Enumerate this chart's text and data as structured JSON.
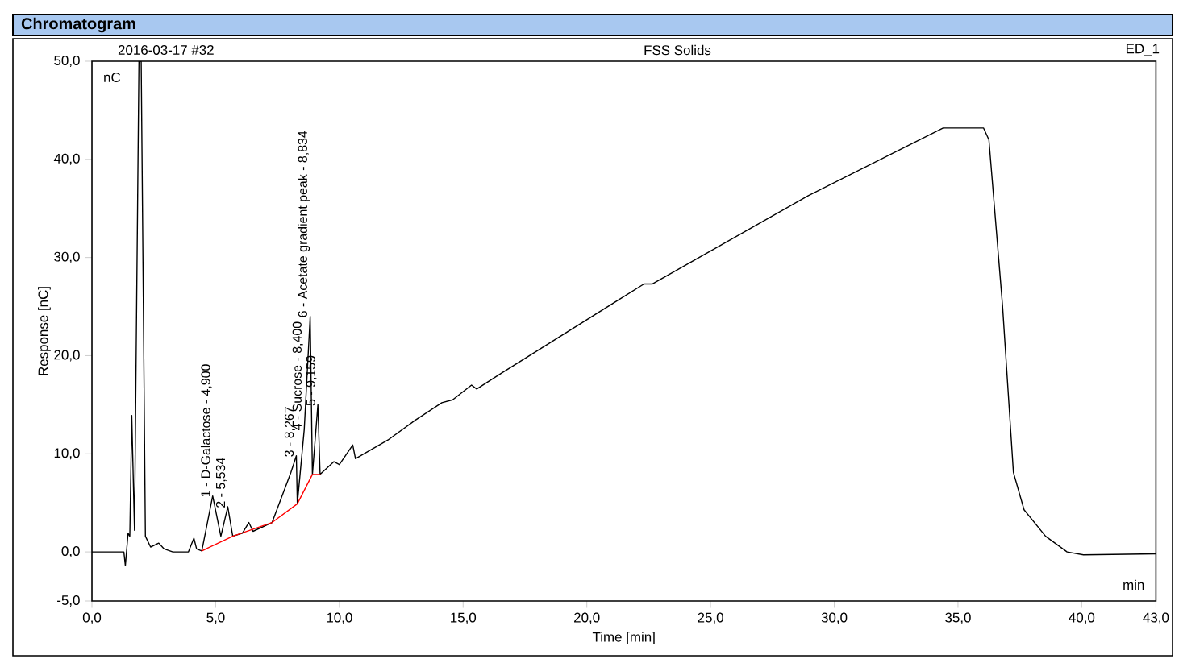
{
  "chart_data": {
    "type": "line",
    "title": "Chromatogram",
    "subtitle": "FSS Solids",
    "xlabel": "Time [min]",
    "ylabel": "Response [nC]",
    "annotations": [
      "2016-03-17 #32",
      "ED_1",
      "nC",
      "min",
      {
        "text": "1 - D-Galactose - 4,900",
        "x": 4.88,
        "y": 5.7
      },
      {
        "text": "2 - 5,534",
        "x": 5.49,
        "y": 4.6
      },
      {
        "text": "3 - 8,267",
        "x": 8.26,
        "y": 9.8
      },
      {
        "text": "4 - Sucrose - 8,400",
        "x": 8.58,
        "y": 12.5
      },
      {
        "text": "6 - Acetate gradient peak - 8,834",
        "x": 8.82,
        "y": 24.0
      },
      {
        "text": "5 - 9,159",
        "x": 9.13,
        "y": 15.0
      }
    ],
    "xlim": [
      0,
      43
    ],
    "ylim": [
      -5,
      50
    ],
    "xticks": [
      {
        "value": 0,
        "label": "0,0"
      },
      {
        "value": 5,
        "label": "5,0"
      },
      {
        "value": 10,
        "label": "10,0"
      },
      {
        "value": 15,
        "label": "15,0"
      },
      {
        "value": 20,
        "label": "20,0"
      },
      {
        "value": 25,
        "label": "25,0"
      },
      {
        "value": 30,
        "label": "30,0"
      },
      {
        "value": 35,
        "label": "35,0"
      },
      {
        "value": 40,
        "label": "40,0"
      },
      {
        "value": 43,
        "label": "43,0"
      }
    ],
    "yticks": [
      {
        "value": -5,
        "label": "-5,0"
      },
      {
        "value": 0,
        "label": "0,0"
      },
      {
        "value": 10,
        "label": "10,0"
      },
      {
        "value": 20,
        "label": "20,0"
      },
      {
        "value": 30,
        "label": "30,0"
      },
      {
        "value": 40,
        "label": "40,0"
      },
      {
        "value": 50,
        "label": "50,0"
      }
    ],
    "line_style": "solid",
    "marker": "none",
    "series": [
      {
        "color": "#000000",
        "x": [
          0,
          1.29,
          1.35,
          1.46,
          1.53,
          1.61,
          1.72,
          1.9,
          1.99,
          2.16,
          2.37,
          2.7,
          2.92,
          3.27,
          3.9,
          4.12,
          4.23,
          4.44,
          4.88,
          5.21,
          5.49,
          5.69,
          6.08,
          6.34,
          6.51,
          7.28,
          8.04,
          8.26,
          8.3,
          8.58,
          8.82,
          8.91,
          9.13,
          9.22,
          9.78,
          10.0,
          10.54,
          10.65,
          11.96,
          13.05,
          14.14,
          14.58,
          15.34,
          15.55,
          16.54,
          22.31,
          22.64,
          28.95,
          34.4,
          36.03,
          36.25,
          36.8,
          37.24,
          37.67,
          38.54,
          39.41,
          40.07,
          43.0
        ],
        "values": [
          0,
          0,
          -1.4,
          1.9,
          1.6,
          13.9,
          2.2,
          50,
          50,
          1.6,
          0.5,
          0.9,
          0.3,
          0,
          0,
          1.4,
          0.3,
          0.1,
          5.7,
          1.6,
          4.6,
          1.6,
          1.9,
          3.0,
          2.1,
          3.0,
          8.1,
          9.8,
          4.9,
          12.5,
          24.0,
          7.9,
          15.0,
          7.9,
          9.2,
          8.9,
          10.9,
          9.5,
          11.4,
          13.4,
          15.2,
          15.5,
          17.0,
          16.6,
          18.2,
          27.3,
          27.3,
          36.3,
          43.2,
          43.2,
          42.0,
          25.1,
          8.1,
          4.3,
          1.6,
          0.0,
          -0.3,
          -0.2
        ]
      },
      {
        "color": "#ff0000",
        "x": [
          4.44,
          5.69,
          7.28,
          8.3,
          8.91,
          9.22
        ],
        "values": [
          0.1,
          1.6,
          3.0,
          4.9,
          7.9,
          7.9
        ]
      }
    ]
  }
}
